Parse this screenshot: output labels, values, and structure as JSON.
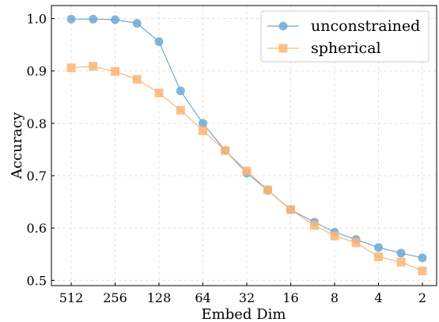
{
  "chart_data": {
    "type": "line",
    "xlabel": "Embed Dim",
    "ylabel": "Accuracy",
    "x_axis_scale": "log2-reversed",
    "x": [
      512,
      362,
      256,
      181,
      128,
      91,
      64,
      45,
      32,
      23,
      16,
      11,
      8,
      5.7,
      4,
      2.8,
      2
    ],
    "xticks": [
      512,
      256,
      128,
      64,
      32,
      16,
      8,
      4,
      2
    ],
    "ylim": [
      0.49,
      1.025
    ],
    "yticks": [
      0.5,
      0.6,
      0.7,
      0.8,
      0.9,
      1.0
    ],
    "grid": true,
    "legend_position": "top-right",
    "series": [
      {
        "name": "unconstrained",
        "color": "#6fa8d6",
        "marker": "circle",
        "values": [
          0.999,
          0.999,
          0.998,
          0.991,
          0.956,
          0.862,
          0.8,
          0.748,
          0.705,
          0.672,
          0.635,
          0.611,
          0.592,
          0.578,
          0.563,
          0.552,
          0.543
        ]
      },
      {
        "name": "spherical",
        "color": "#fdb576",
        "marker": "square",
        "values": [
          0.906,
          0.909,
          0.899,
          0.884,
          0.858,
          0.825,
          0.786,
          0.748,
          0.709,
          0.673,
          0.635,
          0.605,
          0.585,
          0.572,
          0.545,
          0.535,
          0.518
        ]
      }
    ]
  }
}
